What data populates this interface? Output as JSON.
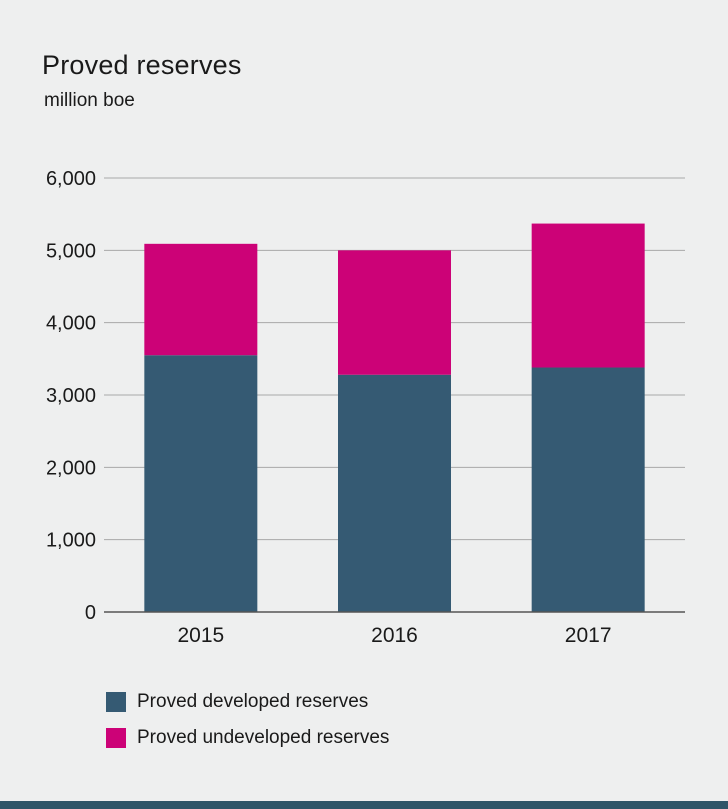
{
  "chart_data": {
    "type": "bar",
    "stacked": true,
    "title": "Proved reserves",
    "subtitle": "million boe",
    "categories": [
      "2015",
      "2016",
      "2017"
    ],
    "series": [
      {
        "name": "Proved developed reserves",
        "color": "#355a73",
        "values": [
          3550,
          3280,
          3380
        ]
      },
      {
        "name": "Proved undeveloped reserves",
        "color": "#cc0277",
        "values": [
          1540,
          1720,
          1990
        ]
      }
    ],
    "ylim": [
      0,
      6000
    ],
    "yticks": [
      0,
      1000,
      2000,
      3000,
      4000,
      5000,
      6000
    ],
    "ytick_labels": [
      "0",
      "1,000",
      "2,000",
      "3,000",
      "4,000",
      "5,000",
      "6,000"
    ],
    "grid": true,
    "legend_position": "bottom-left"
  }
}
